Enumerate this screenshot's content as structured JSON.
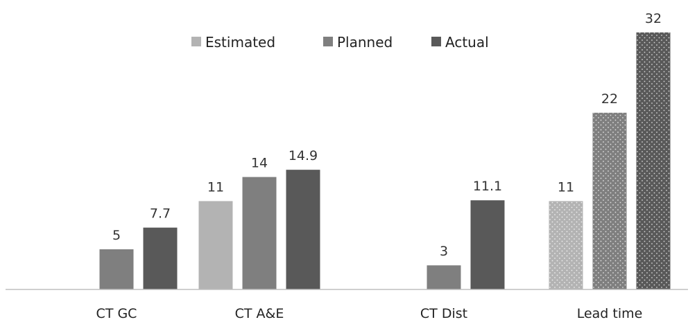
{
  "chart_data": {
    "type": "bar",
    "title": "",
    "xlabel": "",
    "ylabel": "",
    "ylim": [
      0,
      32
    ],
    "grid": false,
    "legend_position": "top-center",
    "categories": [
      "CT GC",
      "CT A&E",
      "CT Dist",
      "Lead time"
    ],
    "series": [
      {
        "name": "Estimated",
        "color": "#b3b3b3",
        "values": [
          null,
          11,
          null,
          11
        ]
      },
      {
        "name": "Planned",
        "color": "#7f7f7f",
        "values": [
          5,
          14,
          3,
          22
        ]
      },
      {
        "name": "Actual",
        "color": "#595959",
        "values": [
          7.7,
          14.9,
          11.1,
          32
        ]
      }
    ],
    "dotted_category": "Lead time"
  }
}
